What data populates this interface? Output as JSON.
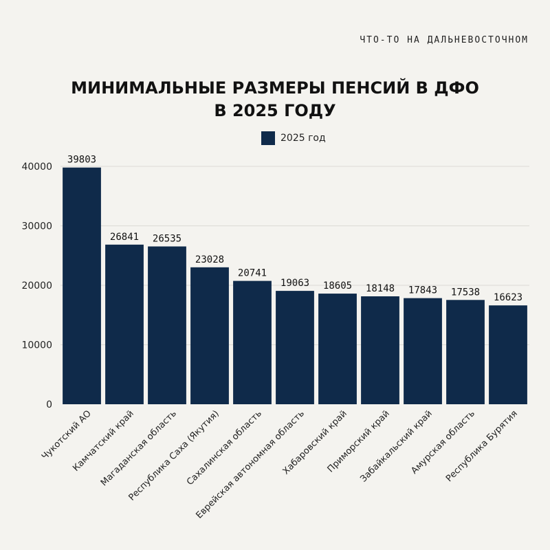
{
  "brand": "ЧТО-ТО НА ДАЛЬНЕВОСТОЧНОМ",
  "title_line1": "МИНИМАЛЬНЫЕ РАЗМЕРЫ ПЕНСИЙ В ДФО",
  "title_line2": "В 2025 ГОДУ",
  "chart_data": {
    "type": "bar",
    "title": "МИНИМАЛЬНЫЕ РАЗМЕРЫ ПЕНСИЙ В ДФО В 2025 ГОДУ",
    "xlabel": "",
    "ylabel": "",
    "ylim": [
      0,
      40000
    ],
    "yticks": [
      0,
      10000,
      20000,
      30000,
      40000
    ],
    "grid": true,
    "legend_position": "top-center",
    "bar_color": "#0f2a4a",
    "categories": [
      "Чукотский АО",
      "Камчатский край",
      "Магаданская область",
      "Республика Саха (Якутия)",
      "Сахалинская область",
      "Еврейская автономная область",
      "Хабаровский край",
      "Приморский край",
      "Забайкальский край",
      "Амурская область",
      "Республика Бурятия"
    ],
    "series": [
      {
        "name": "2025 год",
        "values": [
          39803,
          26841,
          26535,
          23028,
          20741,
          19063,
          18605,
          18148,
          17843,
          17538,
          16623
        ]
      }
    ]
  }
}
